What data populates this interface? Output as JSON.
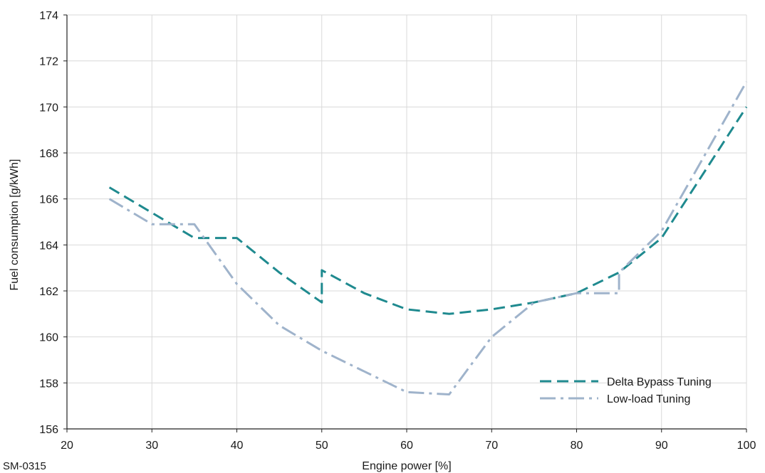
{
  "chart_data": {
    "type": "line",
    "xlabel": "Engine power [%]",
    "ylabel": "Fuel consumption [g/kWh]",
    "xlim": [
      20,
      100
    ],
    "ylim": [
      156,
      174
    ],
    "x_ticks": [
      20,
      30,
      40,
      50,
      60,
      70,
      80,
      90,
      100
    ],
    "y_ticks": [
      156,
      158,
      160,
      162,
      164,
      166,
      168,
      170,
      172,
      174
    ],
    "grid": "vertical and horizontal",
    "legend_position": "bottom-right",
    "series": [
      {
        "name": "Delta Bypass Tuning",
        "color": "#1f8a8f",
        "dash": "dashed",
        "points": [
          [
            25,
            166.5
          ],
          [
            30,
            165.4
          ],
          [
            35,
            164.3
          ],
          [
            40,
            164.3
          ],
          [
            45,
            162.8
          ],
          [
            50,
            161.5
          ],
          [
            50,
            162.9
          ],
          [
            55,
            161.9
          ],
          [
            60,
            161.2
          ],
          [
            65,
            161.0
          ],
          [
            70,
            161.2
          ],
          [
            75,
            161.5
          ],
          [
            80,
            161.9
          ],
          [
            85,
            162.8
          ],
          [
            90,
            164.3
          ],
          [
            100,
            170.0
          ]
        ]
      },
      {
        "name": "Low-load Tuning",
        "color": "#9fb3cb",
        "dash": "dash-dot",
        "points": [
          [
            25,
            166.0
          ],
          [
            30,
            164.9
          ],
          [
            35,
            164.9
          ],
          [
            40,
            162.3
          ],
          [
            45,
            160.5
          ],
          [
            50,
            159.4
          ],
          [
            55,
            158.5
          ],
          [
            60,
            157.6
          ],
          [
            65,
            157.5
          ],
          [
            70,
            160.0
          ],
          [
            75,
            161.5
          ],
          [
            80,
            161.9
          ],
          [
            85,
            161.9
          ],
          [
            85,
            162.8
          ],
          [
            90,
            164.6
          ],
          [
            100,
            171.1
          ]
        ]
      }
    ]
  },
  "footnote": "SM-0315"
}
